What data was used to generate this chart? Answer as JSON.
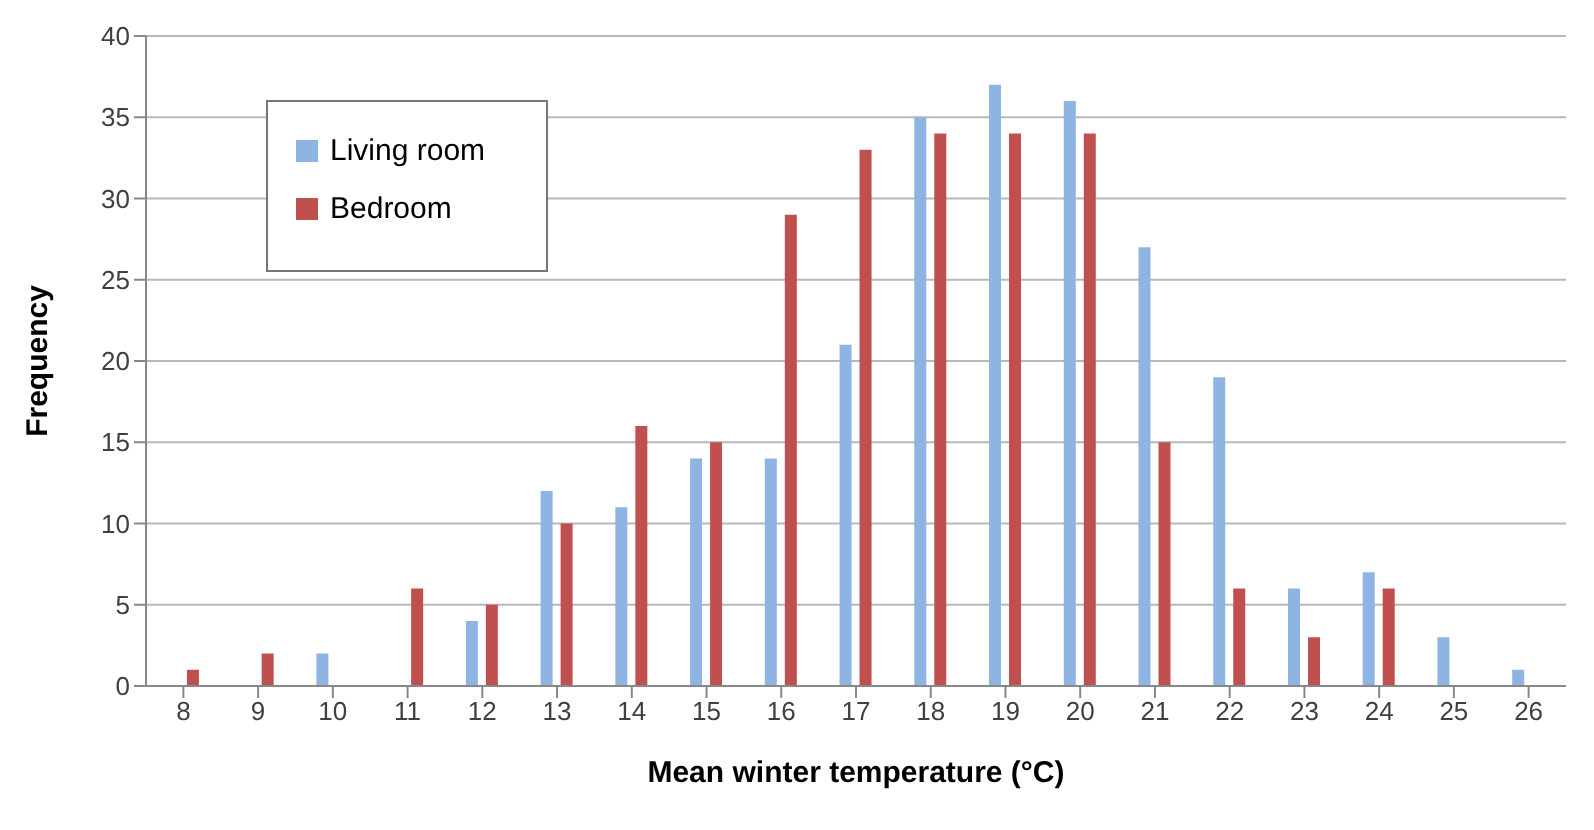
{
  "chart_data": {
    "type": "bar",
    "xlabel": "Mean winter temperature (°C)",
    "ylabel": "Frequency",
    "categories": [
      "8",
      "9",
      "10",
      "11",
      "12",
      "13",
      "14",
      "15",
      "16",
      "17",
      "18",
      "19",
      "20",
      "21",
      "22",
      "23",
      "24",
      "25",
      "26"
    ],
    "series": [
      {
        "name": "Living room",
        "color": "#8db4e2",
        "values": [
          0,
          0,
          2,
          0,
          4,
          12,
          11,
          14,
          14,
          21,
          35,
          37,
          36,
          27,
          19,
          6,
          7,
          3,
          1
        ]
      },
      {
        "name": "Bedroom",
        "color": "#c0504d",
        "values": [
          1,
          2,
          0,
          6,
          5,
          10,
          16,
          15,
          29,
          33,
          34,
          34,
          34,
          15,
          6,
          3,
          6,
          0,
          0
        ]
      }
    ],
    "ylim": [
      0,
      40
    ],
    "yticks": [
      0,
      5,
      10,
      15,
      20,
      25,
      30,
      35,
      40
    ],
    "grid": "y",
    "legend": "top left"
  }
}
